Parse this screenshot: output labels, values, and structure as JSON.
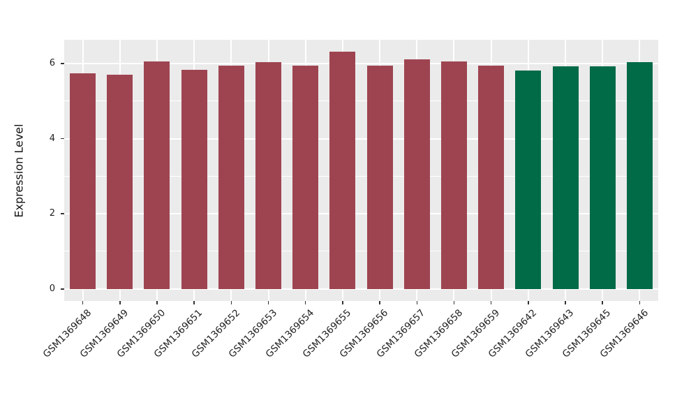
{
  "chart_data": {
    "type": "bar",
    "title": "",
    "xlabel": "",
    "ylabel": "Expression Level",
    "categories": [
      "GSM1369648",
      "GSM1369649",
      "GSM1369650",
      "GSM1369651",
      "GSM1369652",
      "GSM1369653",
      "GSM1369654",
      "GSM1369655",
      "GSM1369656",
      "GSM1369657",
      "GSM1369658",
      "GSM1369659",
      "GSM1369642",
      "GSM1369643",
      "GSM1369645",
      "GSM1369646"
    ],
    "values": [
      5.73,
      5.7,
      6.06,
      5.84,
      5.95,
      6.04,
      5.94,
      6.31,
      5.95,
      6.11,
      6.05,
      5.94,
      5.82,
      5.92,
      5.92,
      6.04
    ],
    "bar_colors": [
      "#9E4451",
      "#9E4451",
      "#9E4451",
      "#9E4451",
      "#9E4451",
      "#9E4451",
      "#9E4451",
      "#9E4451",
      "#9E4451",
      "#9E4451",
      "#9E4451",
      "#9E4451",
      "#016A47",
      "#016A47",
      "#016A47",
      "#016A47"
    ],
    "palette": {
      "maroon": "#9E4451",
      "green": "#016A47"
    },
    "ylim": [
      -0.32,
      6.63
    ],
    "yticks": [
      0,
      2,
      4,
      6
    ],
    "yticks_minor": [
      1,
      3,
      5
    ],
    "grid": true,
    "legend": null,
    "panel_bg": "#EBEBEB",
    "grid_color": "#FFFFFF",
    "tick_color": "#333333"
  }
}
